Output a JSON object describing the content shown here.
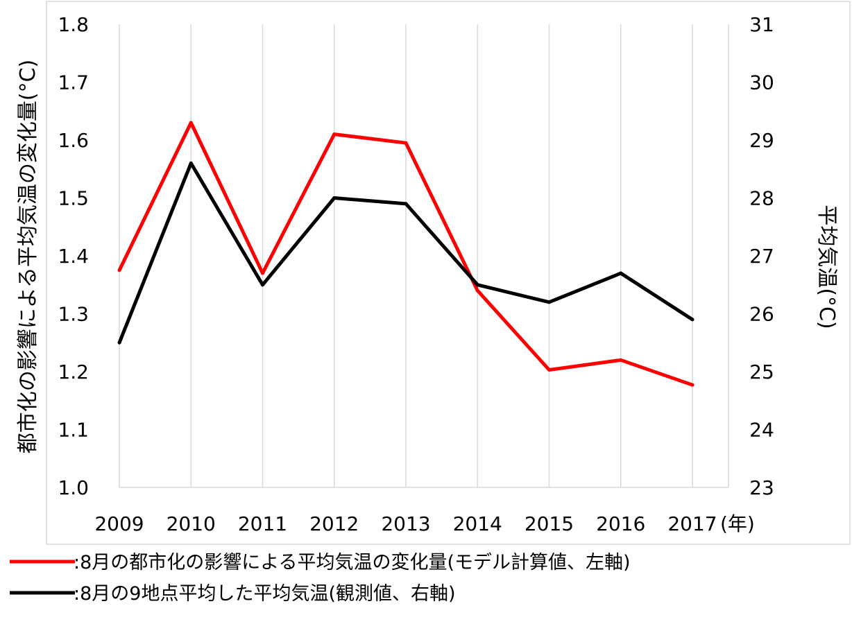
{
  "chart_data": {
    "type": "line",
    "categories": [
      "2009",
      "2010",
      "2011",
      "2012",
      "2013",
      "2014",
      "2015",
      "2016",
      "2017"
    ],
    "x_unit_label": "(年)",
    "y_left": {
      "label": "都市化の影響による平均気温の変化量(°C)",
      "range": [
        1.0,
        1.8
      ],
      "ticks": [
        "1.0",
        "1.1",
        "1.2",
        "1.3",
        "1.4",
        "1.5",
        "1.6",
        "1.7",
        "1.8"
      ]
    },
    "y_right": {
      "label": "平均気温(°C)",
      "range": [
        23,
        31
      ],
      "ticks": [
        "23",
        "24",
        "25",
        "26",
        "27",
        "28",
        "29",
        "30",
        "31"
      ]
    },
    "grid": "vertical",
    "legend_position": "bottom-left",
    "series": [
      {
        "name": ":8月の都市化の影響による平均気温の変化量(モデル計算値、左軸)",
        "axis": "left",
        "color": "#ff0000",
        "values": [
          1.375,
          1.63,
          1.37,
          1.61,
          1.595,
          1.34,
          1.203,
          1.22,
          1.177
        ]
      },
      {
        "name": ":8月の9地点平均した平均気温(観測値、右軸)",
        "axis": "right",
        "color": "#000000",
        "values": [
          25.5,
          28.6,
          26.5,
          28.0,
          27.9,
          26.5,
          26.2,
          26.7,
          25.9
        ]
      }
    ]
  }
}
